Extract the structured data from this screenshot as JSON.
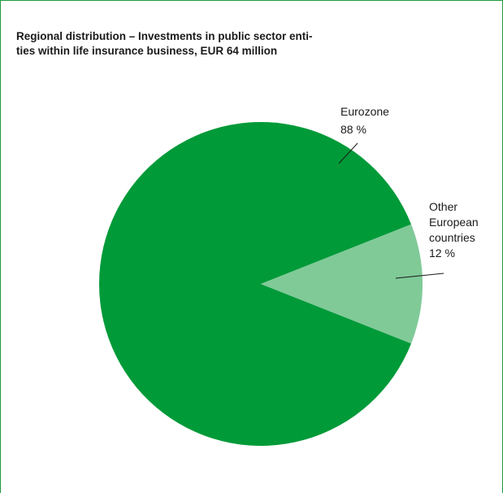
{
  "chart_data": {
    "type": "pie",
    "title_lines": [
      "Regional distribution – Investments in public sector enti-",
      "ties within life insurance business, EUR 64 million"
    ],
    "slices": [
      {
        "name": "Eurozone",
        "value": 88,
        "value_label": "88 %",
        "color": "#009a38"
      },
      {
        "name": "Other European countries",
        "name_lines": [
          "Other",
          "European",
          "countries"
        ],
        "value": 12,
        "value_label": "12 %",
        "color": "#80ca98"
      }
    ],
    "legend": "none",
    "labels": "outside with leader lines"
  },
  "colors": {
    "frame": "#1f9a3e",
    "text": "#1a1a1a"
  }
}
